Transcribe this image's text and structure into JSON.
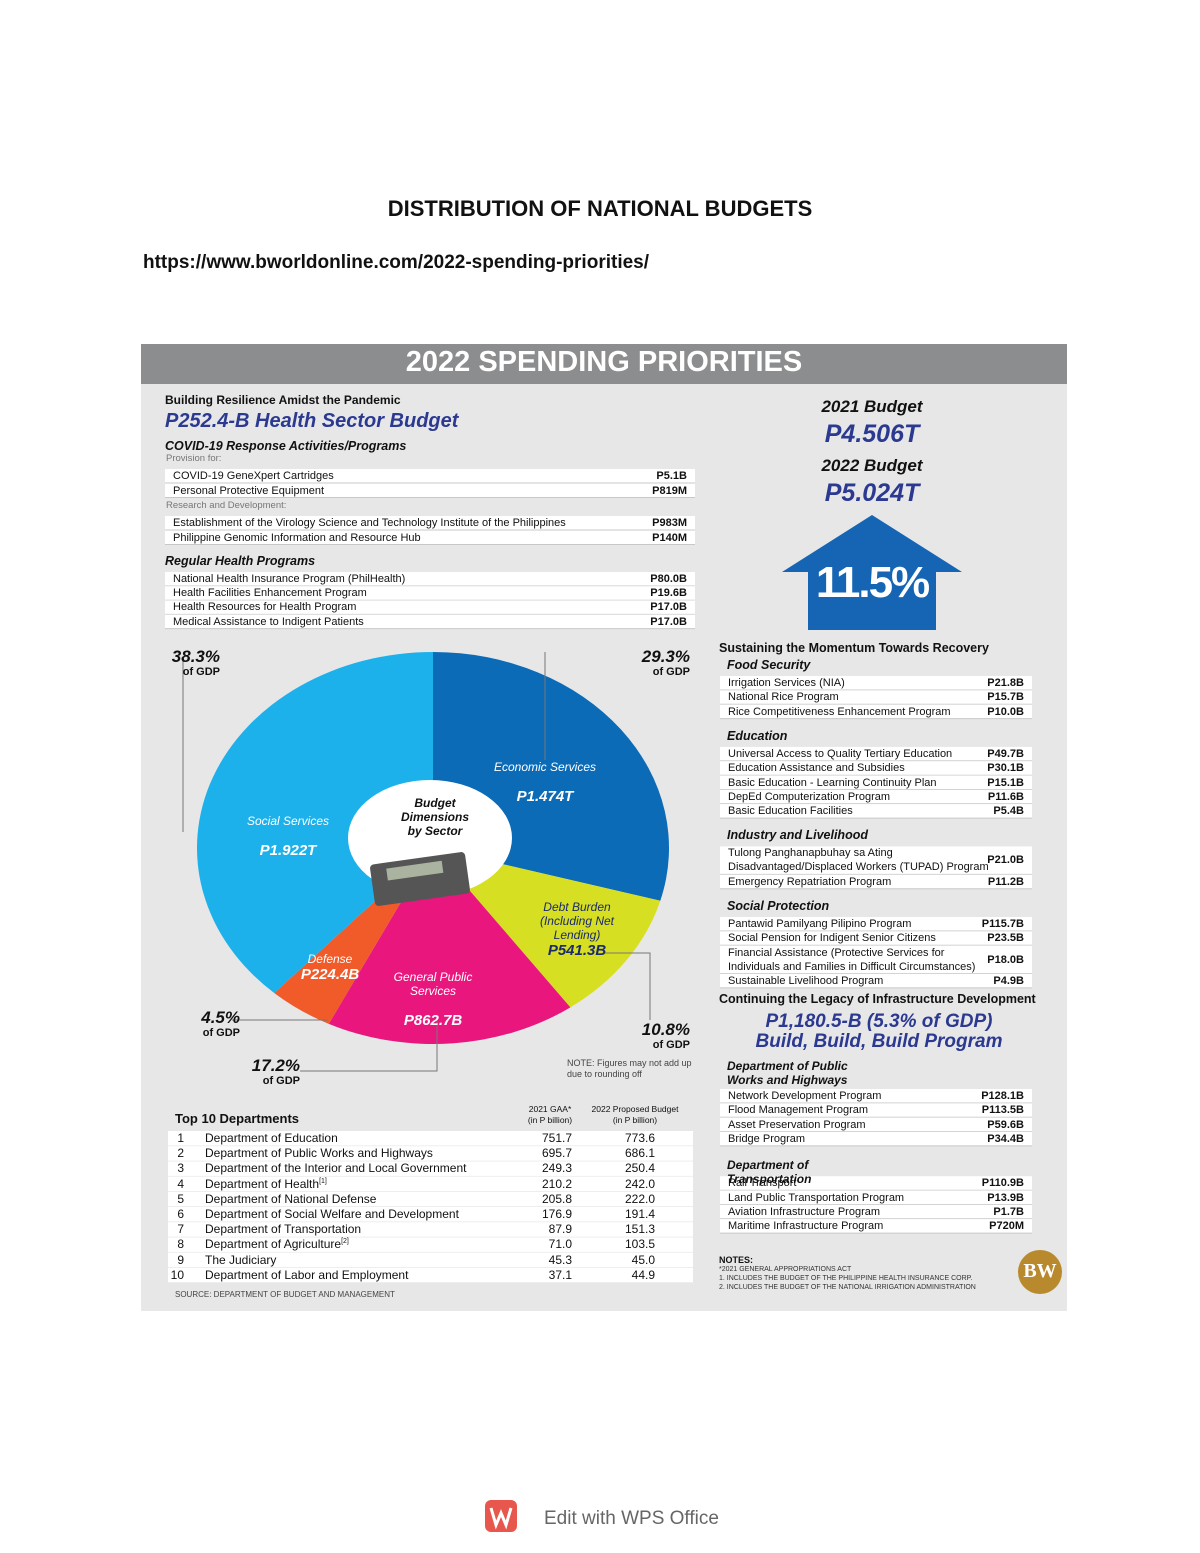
{
  "header": {
    "title": "DISTRIBUTION OF NATIONAL BUDGETS",
    "url": "https://www.bworldonline.com/2022-spending-priorities/"
  },
  "infographic": {
    "title": "2022 SPENDING PRIORITIES",
    "health": {
      "kicker": "Building Resilience Amidst the Pandemic",
      "headline": "P252.4-B Health Sector Budget",
      "covid_heading": "COVID-19 Response Activities/Programs",
      "groups": [
        {
          "label": "Provision for:",
          "rows": [
            {
              "label": "COVID-19 GeneXpert Cartridges",
              "value": "P5.1B"
            },
            {
              "label": "Personal Protective Equipment",
              "value": "P819M"
            }
          ]
        },
        {
          "label": "Research and Development:",
          "rows": [
            {
              "label": "Establishment of the Virology Science and Technology Institute of the Philippines",
              "value": "P983M"
            },
            {
              "label": "Philippine Genomic Information and Resource Hub",
              "value": "P140M"
            }
          ]
        }
      ],
      "regular_heading": "Regular Health Programs",
      "regular_rows": [
        {
          "label": "National Health Insurance Program (PhilHealth)",
          "value": "P80.0B"
        },
        {
          "label": "Health Facilities Enhancement Program",
          "value": "P19.6B"
        },
        {
          "label": "Health Resources for Health Program",
          "value": "P17.0B"
        },
        {
          "label": "Medical Assistance to Indigent Patients",
          "value": "P17.0B"
        }
      ]
    },
    "budget": {
      "label_2021": "2021 Budget",
      "value_2021": "P4.506T",
      "label_2022": "2022 Budget",
      "value_2022": "P5.024T",
      "growth": "11.5%"
    },
    "pie": {
      "center_label": "Budget Dimensions by Sector",
      "share_note": "of GDP",
      "slices": [
        {
          "name": "Economic Services",
          "value": 1474,
          "value_label": "P1.474T",
          "color": "#0b6bb7",
          "share": "29.3%"
        },
        {
          "name": "Debt Burden (Including Net Lending)",
          "value": 541.3,
          "value_label": "P541.3B",
          "color": "#d7df23",
          "share": "10.8%"
        },
        {
          "name": "General Public Services",
          "value": 862.7,
          "value_label": "P862.7B",
          "color": "#e9177d",
          "share": "17.2%"
        },
        {
          "name": "Defense",
          "value": 224.4,
          "value_label": "P224.4B",
          "color": "#f15a29",
          "share": "4.5%"
        },
        {
          "name": "Social Services",
          "value": 1922,
          "value_label": "P1.922T",
          "color": "#1cb1eb",
          "share": "38.3%"
        }
      ],
      "note": "NOTE: Figures may not add up due to rounding off"
    },
    "departments": {
      "heading": "Top 10 Departments",
      "col1": [
        "2021 GAA*",
        "(in P billion)"
      ],
      "col2": [
        "2022 Proposed Budget",
        "(in P billion)"
      ],
      "rows": [
        {
          "rank": "1",
          "name": "Department of Education",
          "gaa": "751.7",
          "proposed": "773.6"
        },
        {
          "rank": "2",
          "name": "Department of Public Works and Highways",
          "gaa": "695.7",
          "proposed": "686.1"
        },
        {
          "rank": "3",
          "name": "Department of the Interior and Local Government",
          "gaa": "249.3",
          "proposed": "250.4"
        },
        {
          "rank": "4",
          "name": "Department of Health",
          "note": "[1]",
          "gaa": "210.2",
          "proposed": "242.0"
        },
        {
          "rank": "5",
          "name": "Department of National Defense",
          "gaa": "205.8",
          "proposed": "222.0"
        },
        {
          "rank": "6",
          "name": "Department of Social Welfare and Development",
          "gaa": "176.9",
          "proposed": "191.4"
        },
        {
          "rank": "7",
          "name": "Department of Transportation",
          "gaa": "87.9",
          "proposed": "151.3"
        },
        {
          "rank": "8",
          "name": "Department of Agriculture",
          "note": "[2]",
          "gaa": "71.0",
          "proposed": "103.5"
        },
        {
          "rank": "9",
          "name": "The Judiciary",
          "gaa": "45.3",
          "proposed": "45.0"
        },
        {
          "rank": "10",
          "name": "Department of Labor and Employment",
          "gaa": "37.1",
          "proposed": "44.9"
        }
      ],
      "source": "SOURCE: DEPARTMENT OF BUDGET AND MANAGEMENT"
    },
    "recovery": {
      "heading": "Sustaining the Momentum Towards Recovery",
      "sections": [
        {
          "title": "Food Security",
          "rows": [
            {
              "label": [
                "Irrigation Services (NIA)"
              ],
              "value": "P21.8B"
            },
            {
              "label": [
                "National Rice Program"
              ],
              "value": "P15.7B"
            },
            {
              "label": [
                "Rice Competitiveness Enhancement Program"
              ],
              "value": "P10.0B"
            }
          ]
        },
        {
          "title": "Education",
          "rows": [
            {
              "label": [
                "Universal Access to Quality Tertiary Education"
              ],
              "value": "P49.7B"
            },
            {
              "label": [
                "Education Assistance and Subsidies"
              ],
              "value": "P30.1B"
            },
            {
              "label": [
                "Basic Education - Learning Continuity Plan"
              ],
              "value": "P15.1B"
            },
            {
              "label": [
                "DepEd Computerization Program"
              ],
              "value": "P11.6B"
            },
            {
              "label": [
                "Basic Education Facilities"
              ],
              "value": "P5.4B"
            }
          ]
        },
        {
          "title": "Industry and Livelihood",
          "rows": [
            {
              "label": [
                "Tulong Panghanapbuhay sa Ating",
                "Disadvantaged/Displaced Workers (TUPAD) Program"
              ],
              "value": "P21.0B"
            },
            {
              "label": [
                "Emergency Repatriation Program"
              ],
              "value": "P11.2B"
            }
          ]
        },
        {
          "title": "Social Protection",
          "rows": [
            {
              "label": [
                "Pantawid Pamilyang Pilipino Program"
              ],
              "value": "P115.7B"
            },
            {
              "label": [
                "Social Pension for Indigent Senior Citizens"
              ],
              "value": "P23.5B"
            },
            {
              "label": [
                "Financial Assistance (Protective Services for",
                "Individuals and Families in Difficult Circumstances)"
              ],
              "value": "P18.0B"
            },
            {
              "label": [
                "Sustainable Livelihood Program"
              ],
              "value": "P4.9B"
            }
          ]
        }
      ]
    },
    "infra": {
      "heading": "Continuing the Legacy of Infrastructure Development",
      "headline1": "P1,180.5-B (5.3% of GDP)",
      "headline2": "Build, Build, Build Program",
      "sections": [
        {
          "title": "Department of Public Works and Highways",
          "rows": [
            {
              "label": [
                "Network Development Program"
              ],
              "value": "P128.1B"
            },
            {
              "label": [
                "Flood Management Program"
              ],
              "value": "P113.5B"
            },
            {
              "label": [
                "Asset Preservation Program"
              ],
              "value": "P59.6B"
            },
            {
              "label": [
                "Bridge Program"
              ],
              "value": "P34.4B"
            }
          ]
        },
        {
          "title": "Department of Transportation",
          "rows": [
            {
              "label": [
                "Rail Transport"
              ],
              "value": "P110.9B"
            },
            {
              "label": [
                "Land Public Transportation Program"
              ],
              "value": "P13.9B"
            },
            {
              "label": [
                "Aviation Infrastructure Program"
              ],
              "value": "P1.7B"
            },
            {
              "label": [
                "Maritime Infrastructure Program"
              ],
              "value": "P720M"
            }
          ]
        }
      ]
    },
    "notes": {
      "heading": "NOTES:",
      "lines": [
        "*2021 GENERAL APPROPRIATIONS ACT",
        "1. INCLUDES THE BUDGET OF THE PHILIPPINE HEALTH INSURANCE CORP.",
        "2. INCLUDES THE BUDGET OF THE NATIONAL IRRIGATION ADMINISTRATION"
      ]
    },
    "logo": "BW"
  },
  "footer": {
    "text": "Edit with WPS Office"
  }
}
